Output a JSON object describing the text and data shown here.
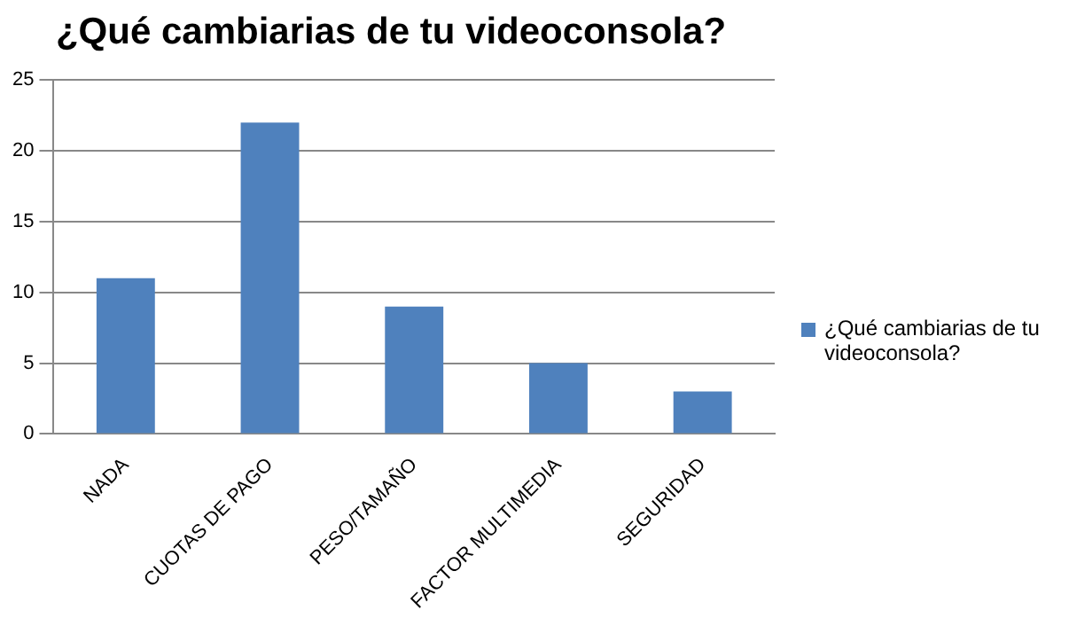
{
  "chart_data": {
    "type": "bar",
    "title": "¿Qué cambiarias de tu videoconsola?",
    "categories": [
      "NADA",
      "CUOTAS DE PAGO",
      "PESO/TAMAÑO",
      "FACTOR MULTIMEDIA",
      "SEGURIDAD"
    ],
    "series": [
      {
        "name": "¿Qué cambiarias de tu videoconsola?",
        "color": "#4f81bd",
        "values": [
          11,
          22,
          9,
          5,
          3
        ]
      }
    ],
    "ylim": [
      0,
      25
    ],
    "yticks": [
      0,
      5,
      10,
      15,
      20,
      25
    ],
    "grid": "y",
    "legend": "right"
  }
}
